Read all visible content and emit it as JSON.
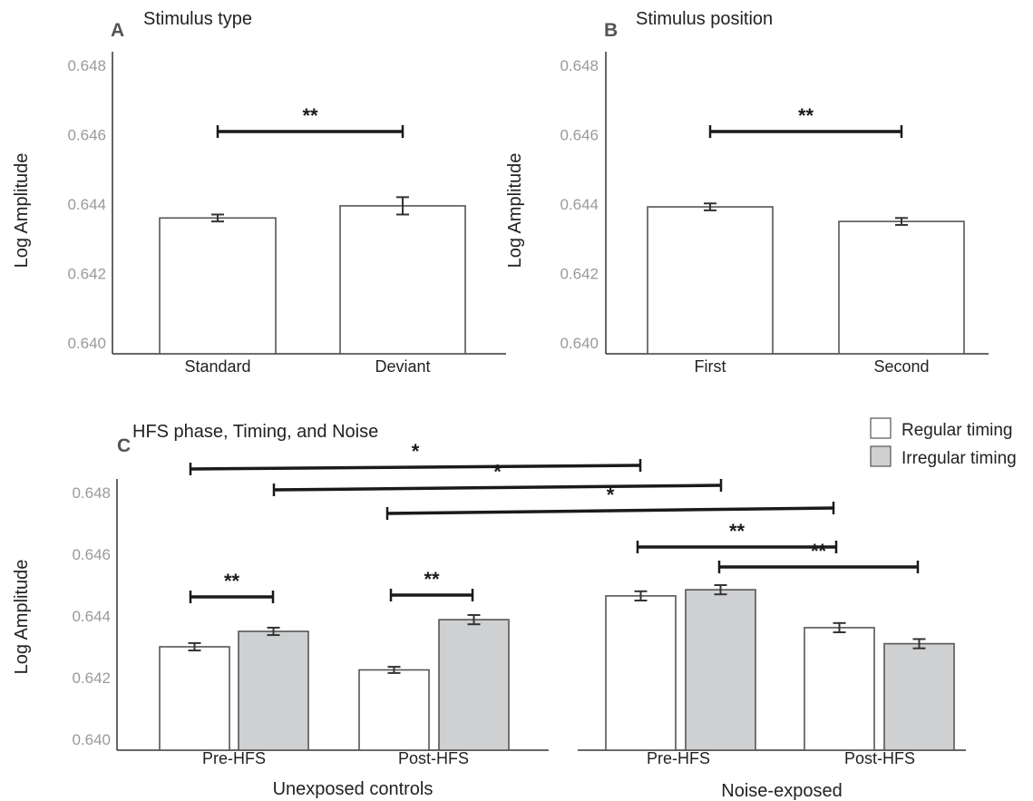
{
  "figure": {
    "ylabel": "Log Amplitude",
    "legend": [
      {
        "label": "Regular timing",
        "color": "#ffffff"
      },
      {
        "label": "Irregular timing",
        "color": "#cfd0d2"
      }
    ],
    "colors": {
      "regular": "#ffffff",
      "irregular": "#cfd0d2",
      "bar_stroke": "#555555",
      "axis": "#333333",
      "tick_text": "#9a9a9a",
      "bracket": "#1a1a1a"
    }
  },
  "chart_data": [
    {
      "type": "bar",
      "panel": "A",
      "title": "Stimulus type",
      "ylabel": "Log Amplitude",
      "ylim": [
        0.6396,
        0.6484
      ],
      "yticks": [
        "0.640",
        "0.642",
        "0.644",
        "0.646",
        "0.648"
      ],
      "categories": [
        "Standard",
        "Deviant"
      ],
      "values": [
        0.6436,
        0.64395
      ],
      "errors": [
        0.0001,
        0.00025
      ],
      "significance": [
        {
          "from": 0,
          "to": 1,
          "label": "**"
        }
      ]
    },
    {
      "type": "bar",
      "panel": "B",
      "title": "Stimulus position",
      "ylabel": "Log Amplitude",
      "ylim": [
        0.6396,
        0.6484
      ],
      "yticks": [
        "0.640",
        "0.642",
        "0.644",
        "0.646",
        "0.648"
      ],
      "categories": [
        "First",
        "Second"
      ],
      "values": [
        0.64392,
        0.6435
      ],
      "errors": [
        0.0001,
        0.0001
      ],
      "significance": [
        {
          "from": 0,
          "to": 1,
          "label": "**"
        }
      ]
    },
    {
      "type": "bar",
      "panel": "C",
      "title": "HFS phase, Timing, and Noise",
      "ylabel": "Log Amplitude",
      "ylim": [
        0.6396,
        0.6484
      ],
      "yticks": [
        "0.640",
        "0.642",
        "0.644",
        "0.646",
        "0.648"
      ],
      "groups": [
        {
          "label": "Unexposed controls",
          "categories": [
            "Pre-HFS",
            "Post-HFS"
          ]
        },
        {
          "label": "Noise-exposed",
          "categories": [
            "Pre-HFS",
            "Post-HFS"
          ]
        }
      ],
      "series": [
        {
          "name": "Regular timing",
          "values": [
            0.643,
            0.64225,
            0.64465,
            0.64362
          ]
        },
        {
          "name": "Irregular timing",
          "values": [
            0.6435,
            0.64388,
            0.64485,
            0.6431
          ]
        }
      ],
      "errors": {
        "Regular timing": [
          0.00012,
          0.0001,
          0.00015,
          0.00015
        ],
        "Irregular timing": [
          0.00012,
          0.00015,
          0.00015,
          0.00015
        ]
      },
      "significance": [
        {
          "label": "*"
        },
        {
          "label": "*"
        },
        {
          "label": "*"
        },
        {
          "label": "**"
        },
        {
          "label": "**"
        },
        {
          "label": "**"
        },
        {
          "label": "**"
        }
      ]
    }
  ]
}
